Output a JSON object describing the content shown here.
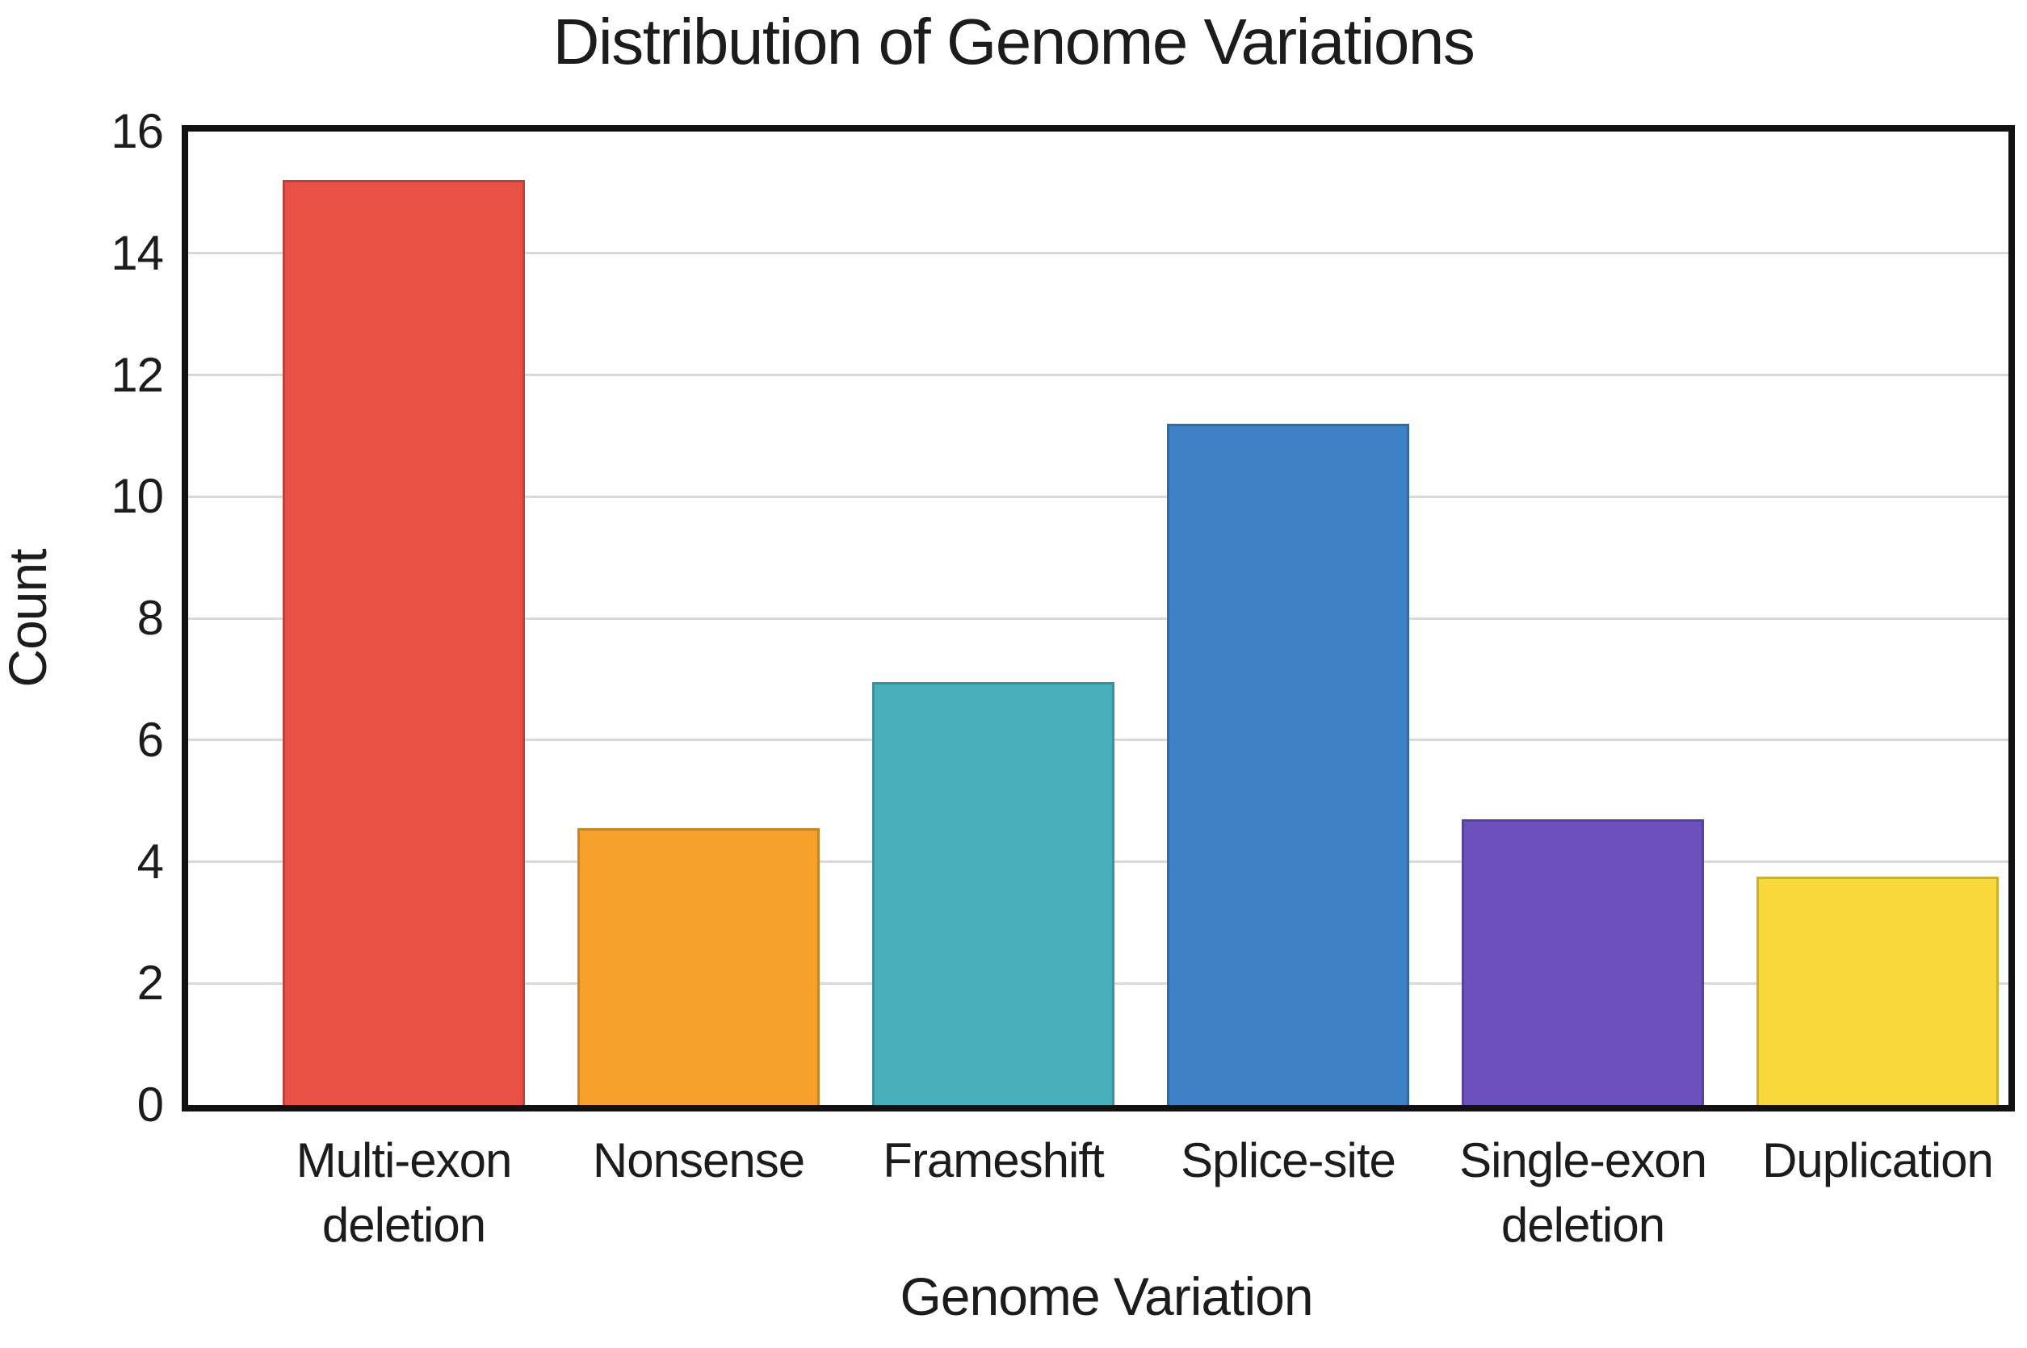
{
  "title": "Distribution of Genome Variations",
  "chart_data": {
    "type": "bar",
    "title": "Distribution of Genome Variations",
    "xlabel": "Genome Variation",
    "ylabel": "Count",
    "categories": [
      "Multi-exon deletion",
      "Nonsense",
      "Frameshift",
      "Splice-site",
      "Single-exon deletion",
      "Duplication"
    ],
    "category_label_lines": [
      [
        "Multi-exon",
        "deletion"
      ],
      [
        "Nonsense"
      ],
      [
        "Frameshift"
      ],
      [
        "Splice-site"
      ],
      [
        "Single-exon",
        "deletion"
      ],
      [
        "Duplication"
      ]
    ],
    "values": [
      15.2,
      4.55,
      6.95,
      11.2,
      4.7,
      3.75
    ],
    "bar_colors": [
      "#E95147",
      "#F5A12B",
      "#49AFBC",
      "#3E81C4",
      "#6C51BD",
      "#F9D83B"
    ],
    "ylim": [
      0,
      16
    ],
    "yticks": [
      0,
      2,
      4,
      6,
      8,
      10,
      12,
      14,
      16
    ],
    "grid": "horizontal",
    "gridline_color": "#D9D9D9",
    "frame_color": "#111111",
    "text_color": "#1C1C1C",
    "legend": "none"
  }
}
